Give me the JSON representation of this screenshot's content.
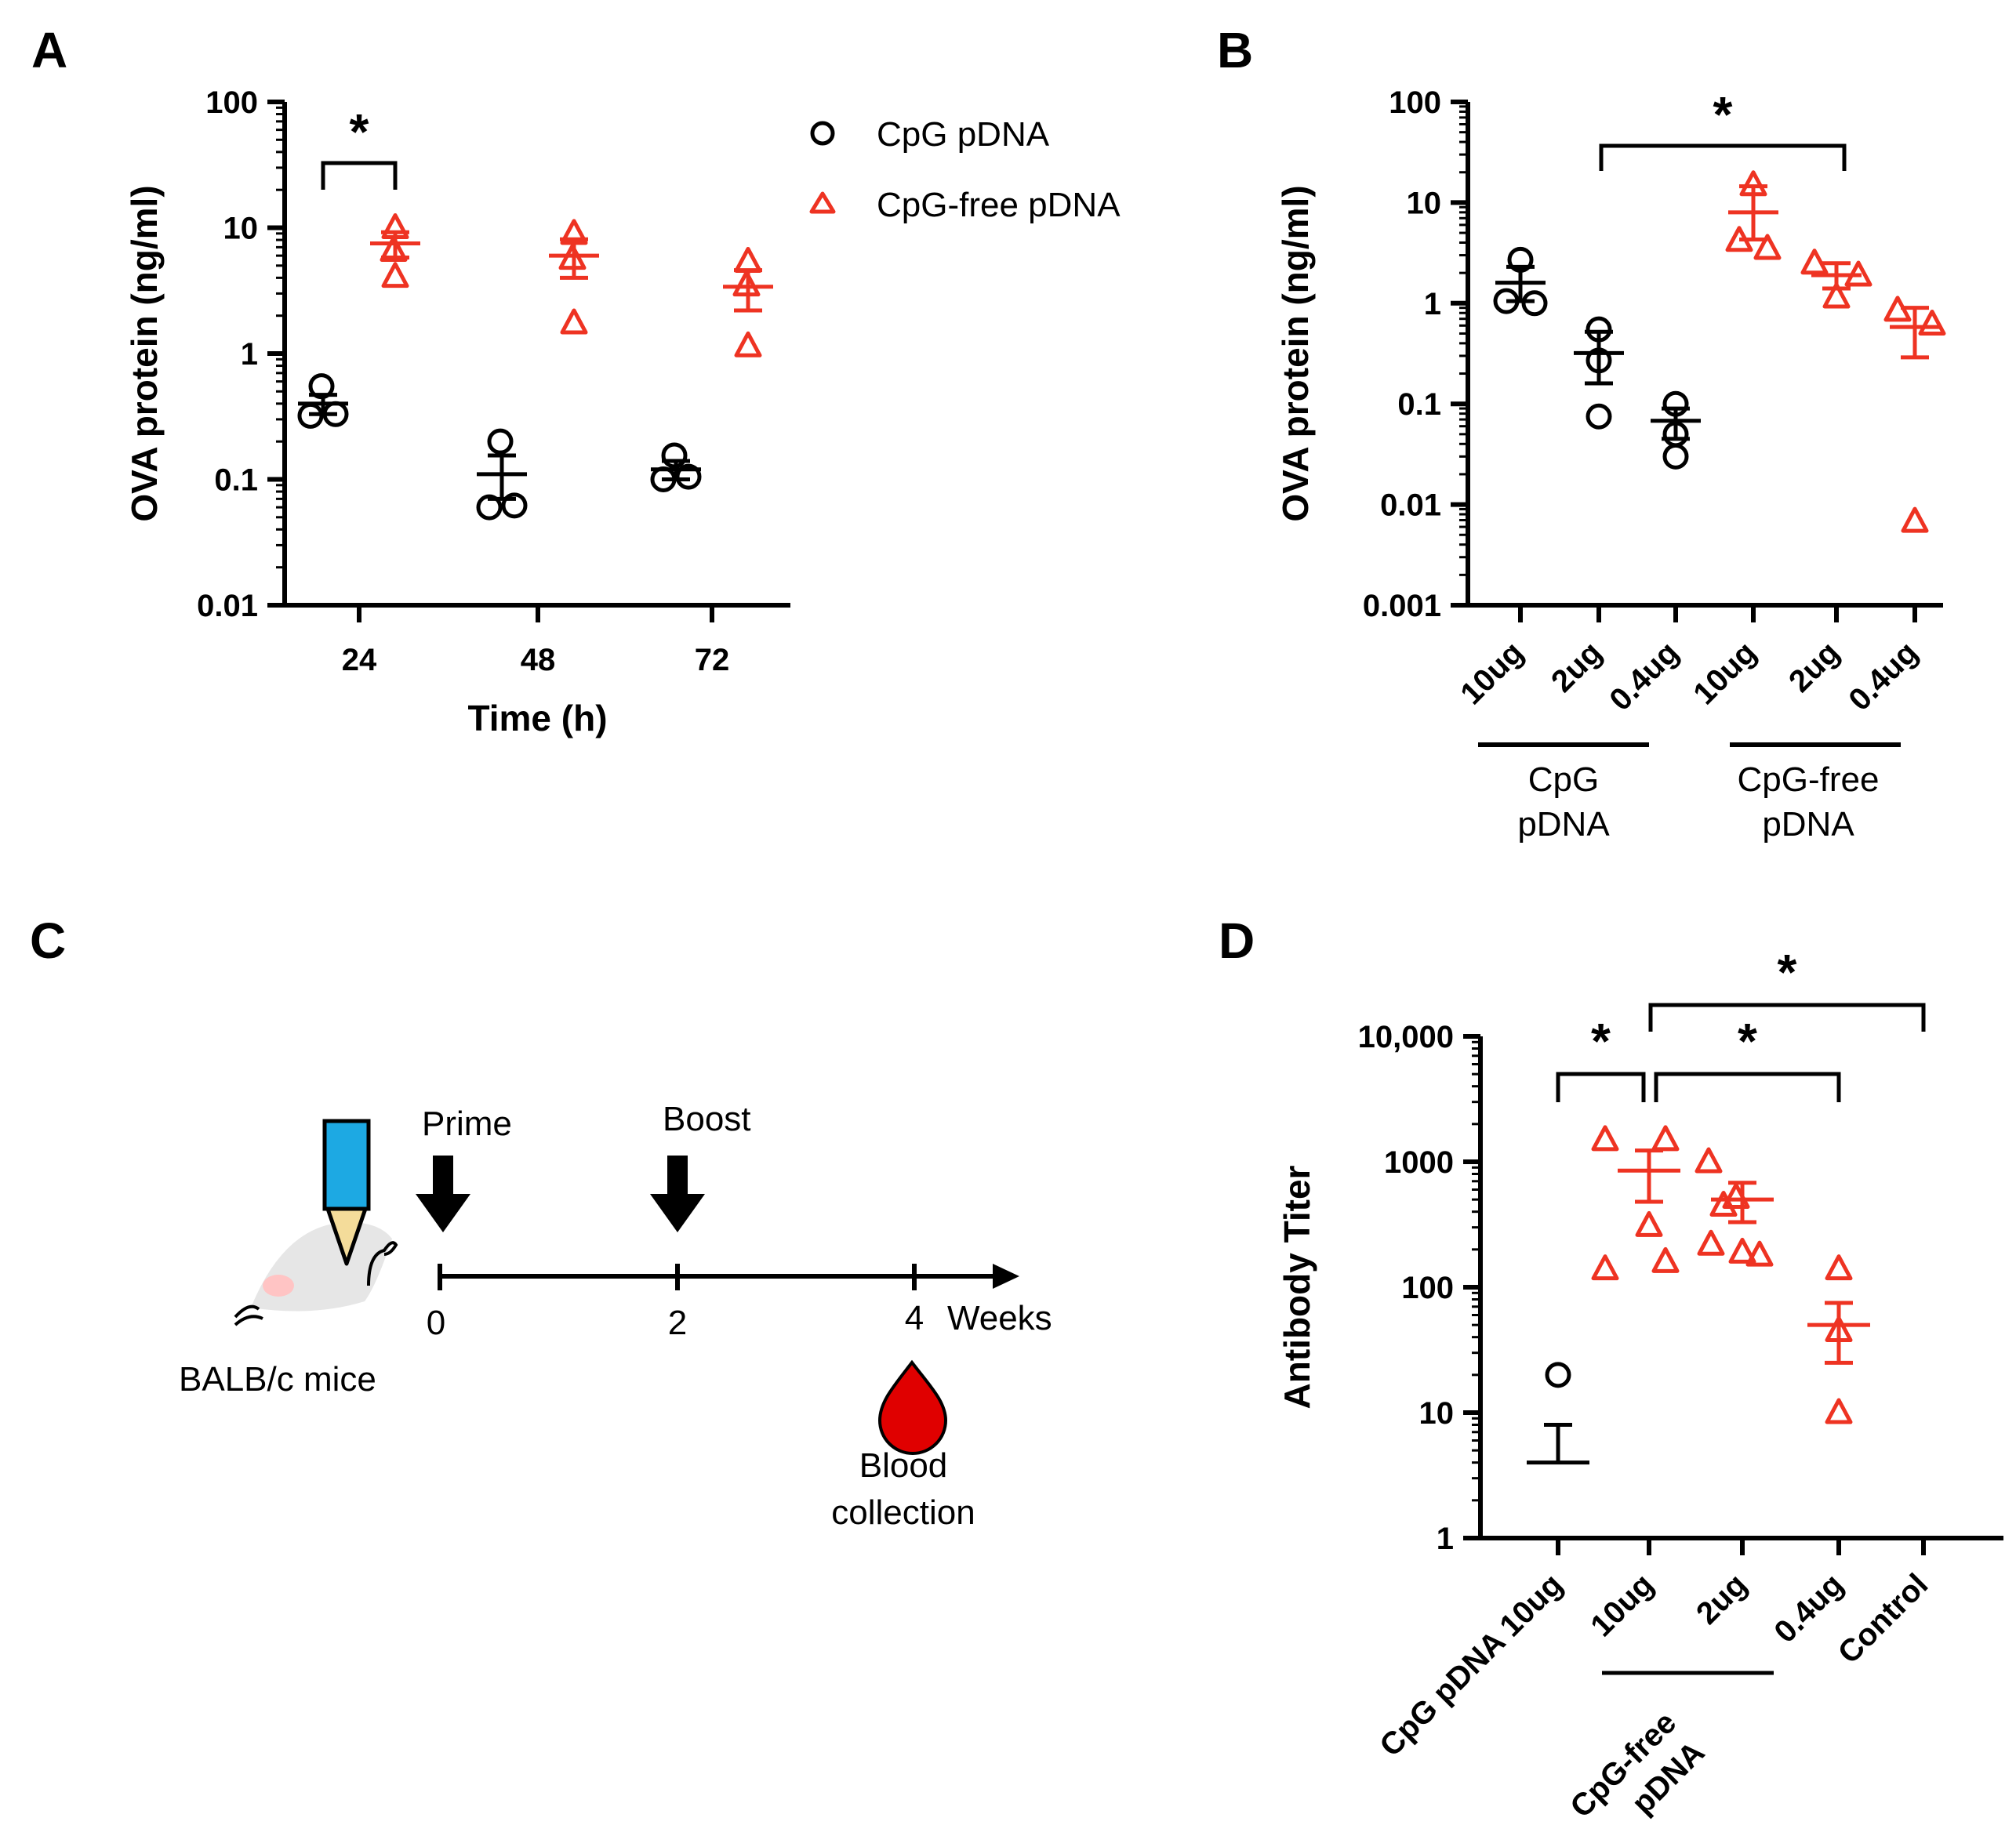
{
  "colors": {
    "cpg": "#000000",
    "cpgfree": "#ee3322",
    "syringe_body": "#1da9e3",
    "syringe_tip": "#f4dc9a",
    "mouse": "#e6e6e6",
    "mouse_ear": "#ffc4c4",
    "blood": "#e00000"
  },
  "panels": {
    "a": "A",
    "b": "B",
    "c": "C",
    "d": "D"
  },
  "legend": {
    "cpg": "CpG pDNA",
    "cpgfree": "CpG-free pDNA"
  },
  "significance": "*",
  "chart_data": [
    {
      "id": "A",
      "type": "scatter",
      "title": "",
      "xlabel": "Time (h)",
      "ylabel": "OVA protein (ng/ml)",
      "yscale": "log",
      "ylim": [
        0.01,
        100
      ],
      "yticks": [
        "0.01",
        "0.1",
        "1",
        "10",
        "100"
      ],
      "categories": [
        "24",
        "48",
        "72"
      ],
      "series": [
        {
          "name": "CpG pDNA",
          "points": [
            [
              0.55,
              0.32,
              0.33
            ],
            [
              0.2,
              0.06,
              0.062
            ],
            [
              0.155,
              0.1,
              0.105
            ]
          ],
          "mean": [
            0.4,
            0.11,
            0.12
          ],
          "sem": [
            [
              0.33,
              0.47
            ],
            [
              0.07,
              0.155
            ],
            [
              0.1,
              0.14
            ]
          ]
        },
        {
          "name": "CpG-free pDNA",
          "points": [
            [
              10.0,
              6.6,
              4.1
            ],
            [
              9.0,
              5.7,
              1.75
            ],
            [
              5.4,
              3.5,
              1.15
            ]
          ],
          "mean": [
            7.5,
            6.0,
            3.4
          ],
          "sem": [
            [
              5.8,
              9.2
            ],
            [
              4.0,
              8.1
            ],
            [
              2.2,
              4.6
            ]
          ]
        }
      ],
      "annotations": [
        {
          "text": "*",
          "between": [
            "CpG pDNA 24",
            "CpG-free pDNA 24"
          ]
        }
      ]
    },
    {
      "id": "B",
      "type": "scatter",
      "title": "",
      "xlabel": "",
      "ylabel": "OVA protein (ng/ml)",
      "yscale": "log",
      "ylim": [
        0.001,
        100
      ],
      "yticks": [
        "0.001",
        "0.01",
        "0.1",
        "1",
        "10",
        "100"
      ],
      "categories": [
        "10ug",
        "2ug",
        "0.4ug",
        "10ug",
        "2ug",
        "0.4ug"
      ],
      "groups": [
        {
          "label": [
            "CpG",
            "pDNA"
          ]
        },
        {
          "label": [
            "CpG-free",
            "pDNA"
          ]
        }
      ],
      "series": [
        {
          "name": "CpG pDNA",
          "points": [
            [
              2.7,
              1.05,
              1.0
            ],
            [
              0.55,
              0.27,
              0.075
            ],
            [
              0.1,
              0.05,
              0.03
            ]
          ],
          "mean": [
            1.6,
            0.32,
            0.068
          ],
          "sem": [
            [
              1.05,
              2.3
            ],
            [
              0.16,
              0.52
            ],
            [
              0.045,
              0.09
            ]
          ]
        },
        {
          "name": "CpG-free pDNA",
          "points": [
            [
              15.0,
              4.2,
              3.5
            ],
            [
              2.5,
              1.9,
              1.15
            ],
            [
              0.85,
              0.62,
              0.0068
            ]
          ],
          "mean": [
            8.0,
            1.9,
            0.58
          ],
          "sem": [
            [
              4.3,
              14.5
            ],
            [
              1.4,
              2.5
            ],
            [
              0.29,
              0.9
            ]
          ]
        }
      ],
      "annotations": [
        {
          "text": "*",
          "between": [
            "CpG pDNA 2ug",
            "CpG-free pDNA 2ug"
          ]
        }
      ]
    },
    {
      "id": "D",
      "type": "scatter",
      "title": "",
      "xlabel": "",
      "ylabel": "Antibody Titer",
      "yscale": "log",
      "ylim": [
        1,
        10000
      ],
      "yticks": [
        "1",
        "10",
        "100",
        "1000",
        "10,000"
      ],
      "categories": [
        "CpG pDNA 10ug",
        "10ug",
        "2ug",
        "0.4ug",
        "Control"
      ],
      "group_label": [
        "CpG-free",
        "pDNA"
      ],
      "series": [
        {
          "name": "CpG pDNA 10ug",
          "points": [
            20
          ],
          "mean": 4,
          "sem": [
            4,
            8
          ]
        },
        {
          "name": "CpG-free pDNA 10ug",
          "points": [
            1500,
            1500,
            310,
            140,
            160
          ],
          "mean": 850,
          "sem": [
            480,
            1230
          ]
        },
        {
          "name": "CpG-free pDNA 2ug",
          "points": [
            1000,
            520,
            450,
            220,
            180,
            190
          ],
          "mean": 500,
          "sem": [
            330,
            680
          ]
        },
        {
          "name": "CpG-free pDNA 0.4ug",
          "points": [
            140,
            45,
            10
          ],
          "mean": 50,
          "sem": [
            25,
            75
          ]
        },
        {
          "name": "Control",
          "points": [],
          "mean": null,
          "sem": null
        }
      ],
      "annotations": [
        {
          "text": "*",
          "between": [
            "CpG pDNA 10ug",
            "CpG-free pDNA 10ug"
          ]
        },
        {
          "text": "*",
          "between": [
            "CpG-free pDNA 10ug",
            "CpG-free pDNA 0.4ug"
          ]
        },
        {
          "text": "*",
          "between": [
            "CpG-free pDNA 10ug",
            "Control"
          ]
        }
      ]
    }
  ],
  "schedule": {
    "prime": "Prime",
    "boost": "Boost",
    "ticks": [
      "0",
      "2",
      "4"
    ],
    "unit": "Weeks",
    "mice": "BALB/c mice",
    "blood": [
      "Blood",
      "collection"
    ]
  }
}
